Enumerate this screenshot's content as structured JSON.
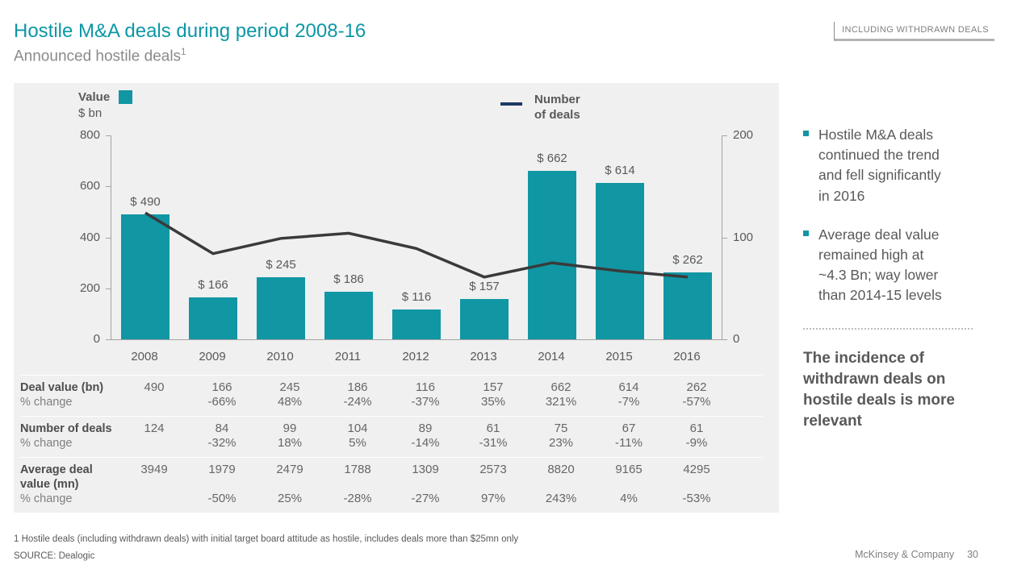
{
  "header": {
    "title": "Hostile M&A deals during period 2008-16",
    "subtitle": "Announced hostile deals",
    "subtitle_sup": "1",
    "tag": "INCLUDING WITHDRAWN DEALS"
  },
  "colors": {
    "teal": "#0d97a5",
    "bar": "#1196a4",
    "line": "#3a3a3a",
    "legend_line": "#1f3864",
    "panel_bg": "#f0f0f0"
  },
  "chart_data": {
    "type": "bar+line combo",
    "categories": [
      "2008",
      "2009",
      "2010",
      "2011",
      "2012",
      "2013",
      "2014",
      "2015",
      "2016"
    ],
    "series": [
      {
        "name": "Value $ bn",
        "type": "bar",
        "axis": "left",
        "values": [
          490,
          166,
          245,
          186,
          116,
          157,
          662,
          614,
          262
        ],
        "label_prefix": "$ "
      },
      {
        "name": "Number of deals",
        "type": "line",
        "axis": "right",
        "values": [
          124,
          84,
          99,
          104,
          89,
          61,
          75,
          67,
          61
        ]
      }
    ],
    "left_axis": {
      "max": 800,
      "ticks": [
        800,
        600,
        400,
        200,
        0
      ]
    },
    "right_axis": {
      "max": 200,
      "ticks": [
        200,
        100,
        0
      ]
    },
    "legend": {
      "value_label": "Value",
      "value_unit": "$ bn",
      "deals_label": "Number of deals"
    },
    "grid": false,
    "legend_position": "top"
  },
  "table": {
    "rows": [
      {
        "label": "Deal value (bn)",
        "sublabel": "% change",
        "values": [
          "490",
          "166",
          "245",
          "186",
          "116",
          "157",
          "662",
          "614",
          "262"
        ],
        "changes": [
          "",
          "-66%",
          "48%",
          "-24%",
          "-37%",
          "35%",
          "321%",
          "-7%",
          "-57%"
        ]
      },
      {
        "label": "Number of deals",
        "sublabel": "% change",
        "values": [
          "124",
          "84",
          "99",
          "104",
          "89",
          "61",
          "75",
          "67",
          "61"
        ],
        "changes": [
          "",
          "-32%",
          "18%",
          "5%",
          "-14%",
          "-31%",
          "23%",
          "-11%",
          "-9%"
        ]
      },
      {
        "label": "Average deal value (mn)",
        "sublabel": "% change",
        "values": [
          "3949",
          "1979",
          "2479",
          "1788",
          "1309",
          "2573",
          "8820",
          "9165",
          "4295"
        ],
        "changes": [
          "",
          "-50%",
          "25%",
          "-28%",
          "-27%",
          "97%",
          "243%",
          "4%",
          "-53%"
        ]
      }
    ]
  },
  "sidebar": {
    "bullets": [
      "Hostile M&A deals continued the trend and fell significantly in 2016",
      "Average deal value remained high at ~4.3 Bn; way lower than 2014-15 levels"
    ],
    "callout": "The incidence of withdrawn deals on hostile deals is more relevant"
  },
  "footer": {
    "footnote": "1 Hostile deals (including withdrawn deals) with initial target board attitude as hostile, includes deals more than $25mn only",
    "source": "SOURCE: Dealogic",
    "company": "McKinsey & Company",
    "page": "30"
  }
}
